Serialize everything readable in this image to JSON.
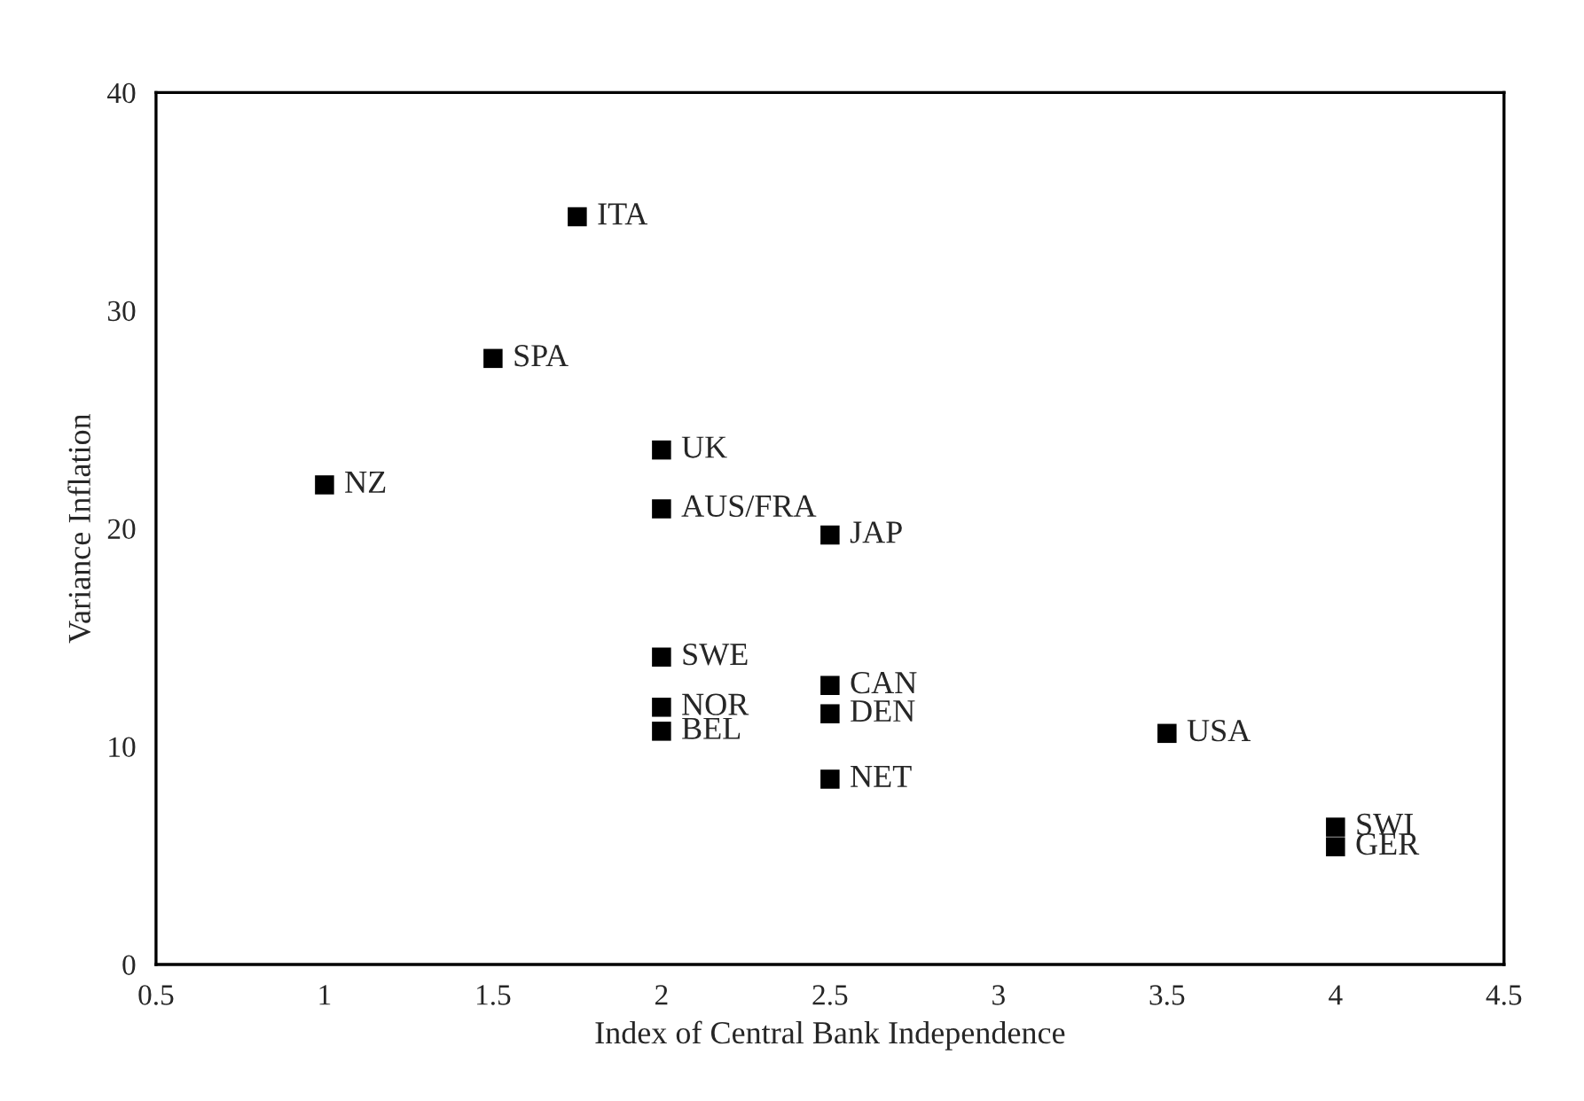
{
  "chart_data": {
    "type": "scatter",
    "xlabel": "Index of Central Bank Independence",
    "ylabel": "Variance Inflation",
    "x": [
      1.75,
      1.5,
      1.0,
      2.0,
      2.0,
      2.5,
      2.0,
      2.0,
      2.0,
      2.5,
      2.5,
      2.5,
      3.5,
      4.0,
      4.0
    ],
    "series": [
      {
        "color": "#000000",
        "values": [
          34.3,
          27.8,
          22.0,
          23.6,
          20.9,
          19.7,
          14.1,
          11.8,
          10.7,
          12.8,
          11.5,
          8.5,
          10.6,
          6.3,
          5.4
        ]
      }
    ],
    "annotations": [
      {
        "text": "ITA",
        "x": 1.75,
        "y": 34.3
      },
      {
        "text": "SPA",
        "x": 1.5,
        "y": 27.8
      },
      {
        "text": "NZ",
        "x": 1.0,
        "y": 22.0
      },
      {
        "text": "UK",
        "x": 2.0,
        "y": 23.6
      },
      {
        "text": "AUS/FRA",
        "x": 2.0,
        "y": 20.9
      },
      {
        "text": "JAP",
        "x": 2.5,
        "y": 19.7
      },
      {
        "text": "SWE",
        "x": 2.0,
        "y": 14.1
      },
      {
        "text": "NOR",
        "x": 2.0,
        "y": 11.8
      },
      {
        "text": "BEL",
        "x": 2.0,
        "y": 10.7
      },
      {
        "text": "CAN",
        "x": 2.5,
        "y": 12.8
      },
      {
        "text": "DEN",
        "x": 2.5,
        "y": 11.5
      },
      {
        "text": "NET",
        "x": 2.5,
        "y": 8.5
      },
      {
        "text": "USA",
        "x": 3.5,
        "y": 10.6
      },
      {
        "text": "SWI",
        "x": 4.0,
        "y": 6.3
      },
      {
        "text": "GER",
        "x": 4.0,
        "y": 5.4
      }
    ],
    "xlim": [
      0.5,
      4.5
    ],
    "xticks": [
      0.5,
      1,
      1.5,
      2,
      2.5,
      3,
      3.5,
      4,
      4.5
    ],
    "ylim": [
      0,
      40
    ],
    "yticks": [
      0,
      10,
      20,
      30,
      40
    ],
    "marker": "square",
    "grid": false
  }
}
